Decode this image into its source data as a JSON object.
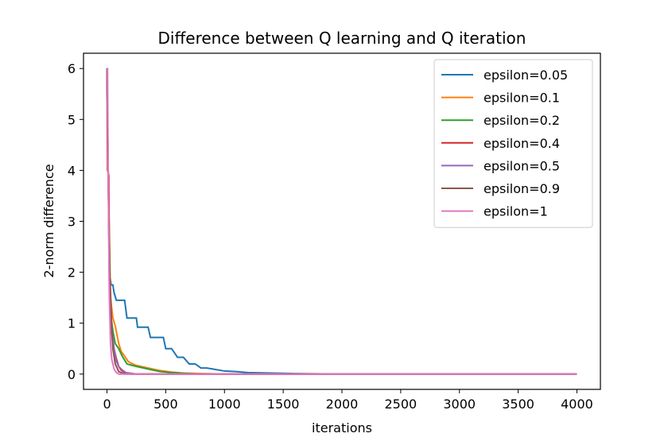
{
  "chart_data": {
    "type": "line",
    "title": "Difference between Q learning and Q iteration",
    "xlabel": "iterations",
    "ylabel": "2-norm difference",
    "xlim": [
      -200,
      4200
    ],
    "ylim": [
      -0.3,
      6.3
    ],
    "xticks": [
      0,
      500,
      1000,
      1500,
      2000,
      2500,
      3000,
      3500,
      4000
    ],
    "yticks": [
      0,
      1,
      2,
      3,
      4,
      5,
      6
    ],
    "grid": false,
    "legend_position": "top-right",
    "series": [
      {
        "name": "epsilon=0.05",
        "color": "#1f77b4",
        "x": [
          0,
          10,
          20,
          35,
          50,
          60,
          80,
          90,
          150,
          170,
          250,
          260,
          350,
          370,
          480,
          500,
          550,
          600,
          650,
          700,
          750,
          800,
          850,
          900,
          1000,
          1100,
          1200,
          1400,
          1600,
          2000,
          4000
        ],
        "y": [
          6.0,
          4.0,
          2.0,
          1.75,
          1.75,
          1.6,
          1.45,
          1.45,
          1.45,
          1.1,
          1.1,
          0.92,
          0.92,
          0.72,
          0.72,
          0.5,
          0.5,
          0.33,
          0.33,
          0.2,
          0.2,
          0.12,
          0.12,
          0.1,
          0.06,
          0.05,
          0.03,
          0.02,
          0.01,
          0.0,
          0.0
        ]
      },
      {
        "name": "epsilon=0.1",
        "color": "#ff7f0e",
        "x": [
          0,
          10,
          30,
          50,
          70,
          100,
          120,
          150,
          180,
          200,
          250,
          350,
          450,
          550,
          650,
          800,
          1000,
          4000
        ],
        "y": [
          6.0,
          4.0,
          1.5,
          1.1,
          0.95,
          0.6,
          0.45,
          0.35,
          0.25,
          0.22,
          0.17,
          0.12,
          0.07,
          0.04,
          0.02,
          0.01,
          0.0,
          0.0
        ]
      },
      {
        "name": "epsilon=0.2",
        "color": "#2ca02c",
        "x": [
          0,
          10,
          30,
          50,
          70,
          100,
          130,
          170,
          200,
          250,
          350,
          450,
          550,
          700,
          800,
          4000
        ],
        "y": [
          6.0,
          4.0,
          1.2,
          0.85,
          0.6,
          0.5,
          0.35,
          0.2,
          0.18,
          0.15,
          0.1,
          0.05,
          0.03,
          0.01,
          0.0,
          0.0
        ]
      },
      {
        "name": "epsilon=0.4",
        "color": "#d62728",
        "x": [
          0,
          5,
          10,
          15,
          20,
          30,
          40,
          60,
          80,
          100,
          120,
          150,
          200,
          4000
        ],
        "y": [
          6.0,
          4.0,
          3.95,
          3.9,
          2.1,
          1.6,
          0.8,
          0.5,
          0.3,
          0.15,
          0.08,
          0.03,
          0.0,
          0.0
        ]
      },
      {
        "name": "epsilon=0.5",
        "color": "#9467bd",
        "x": [
          0,
          10,
          20,
          30,
          40,
          60,
          80,
          100,
          130,
          160,
          250,
          4000
        ],
        "y": [
          6.0,
          4.0,
          1.6,
          1.0,
          0.9,
          0.5,
          0.25,
          0.15,
          0.08,
          0.03,
          0.0,
          0.0
        ]
      },
      {
        "name": "epsilon=0.9",
        "color": "#8c564b",
        "x": [
          0,
          10,
          20,
          30,
          40,
          50,
          70,
          100,
          150,
          4000
        ],
        "y": [
          6.0,
          4.0,
          2.0,
          1.5,
          0.9,
          0.5,
          0.2,
          0.05,
          0.0,
          0.0
        ]
      },
      {
        "name": "epsilon=1",
        "color": "#e377c2",
        "x": [
          0,
          5,
          10,
          20,
          30,
          40,
          60,
          80,
          100,
          4000
        ],
        "y": [
          6.0,
          6.0,
          4.0,
          1.5,
          0.6,
          0.3,
          0.1,
          0.03,
          0.0,
          0.0
        ]
      }
    ]
  }
}
